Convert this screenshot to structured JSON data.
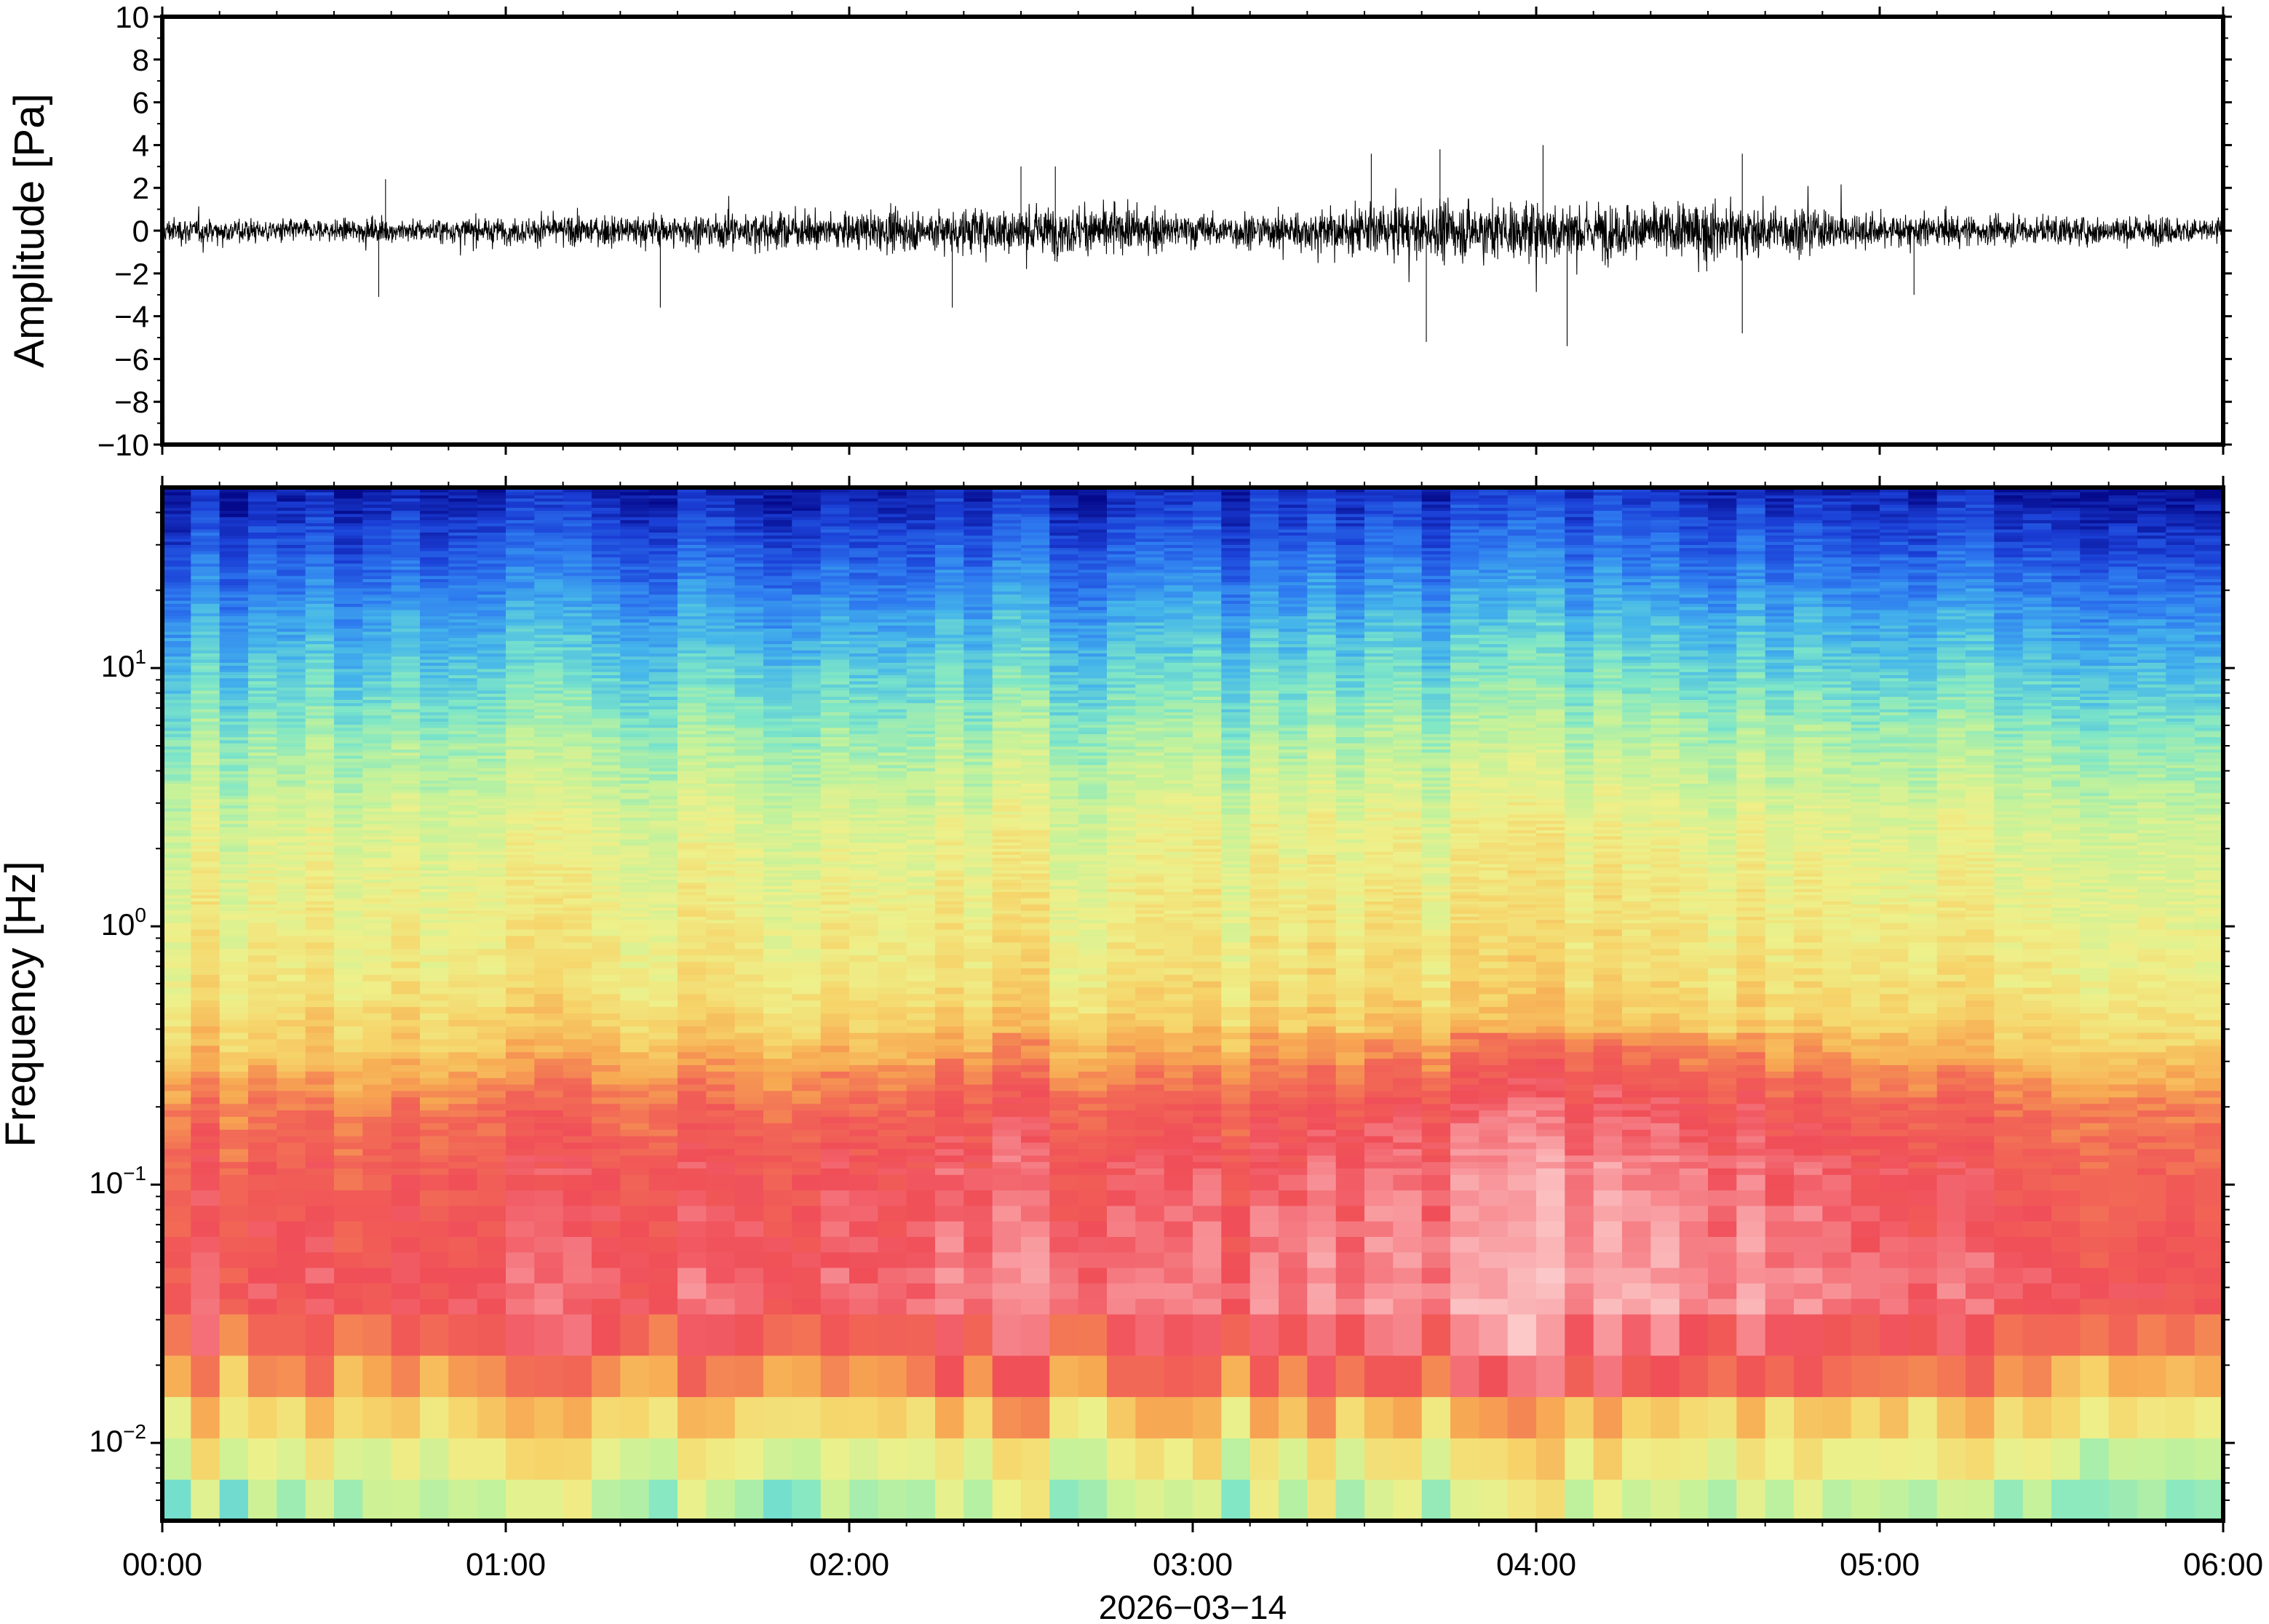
{
  "chart_data": [
    {
      "type": "line",
      "ylabel": "Amplitude [Pa]",
      "ylim": [
        -10,
        10
      ],
      "yticks": [
        10,
        8,
        6,
        4,
        2,
        0,
        -2,
        -4,
        -6,
        -8,
        -10
      ],
      "ytick_labels": [
        "10",
        "8",
        "6",
        "4",
        "2",
        "0",
        "−2",
        "−4",
        "−6",
        "−8",
        "−10"
      ],
      "xlim": [
        "00:00",
        "06:00"
      ],
      "series": [
        {
          "color": "#000000",
          "envelope_hours": [
            0,
            0.25,
            0.5,
            0.75,
            1,
            1.25,
            1.5,
            1.75,
            2,
            2.25,
            2.5,
            2.75,
            3,
            3.25,
            3.5,
            3.75,
            4,
            4.25,
            4.5,
            4.75,
            5,
            5.25,
            5.5,
            5.75,
            6
          ],
          "envelope_amplitude": [
            1.2,
            1.1,
            1.0,
            1.1,
            1.2,
            1.4,
            1.5,
            1.7,
            1.6,
            2.0,
            2.3,
            2.1,
            1.6,
            1.7,
            2.2,
            2.6,
            2.8,
            2.5,
            2.6,
            2.1,
            1.6,
            1.4,
            1.3,
            1.3,
            1.2
          ],
          "peaks": [
            {
              "t": 0.63,
              "y": -3.1
            },
            {
              "t": 0.65,
              "y": 2.4
            },
            {
              "t": 1.45,
              "y": -3.6
            },
            {
              "t": 2.3,
              "y": -3.6
            },
            {
              "t": 2.5,
              "y": 3.0
            },
            {
              "t": 2.6,
              "y": 3.0
            },
            {
              "t": 3.52,
              "y": 3.6
            },
            {
              "t": 3.68,
              "y": -5.2
            },
            {
              "t": 3.72,
              "y": 3.8
            },
            {
              "t": 4.02,
              "y": 4.0
            },
            {
              "t": 4.09,
              "y": -5.4
            },
            {
              "t": 4.6,
              "y": -4.8
            },
            {
              "t": 4.6,
              "y": 3.6
            },
            {
              "t": 5.1,
              "y": -3.0
            }
          ]
        }
      ]
    },
    {
      "type": "heatmap",
      "ylabel": "Frequency [Hz]",
      "xlabel": "2026−03−14",
      "yscale": "log",
      "ylim": [
        0.005,
        50
      ],
      "yticks": [
        {
          "value": 10,
          "base": "10",
          "exp": "1"
        },
        {
          "value": 1,
          "base": "10",
          "exp": "0"
        },
        {
          "value": 0.1,
          "base": "10",
          "exp": "−1"
        },
        {
          "value": 0.01,
          "base": "10",
          "exp": "−2"
        }
      ],
      "xticks": [
        "00:00",
        "01:00",
        "02:00",
        "03:00",
        "04:00",
        "05:00",
        "06:00"
      ],
      "xlim": [
        0,
        6
      ],
      "colormap": [
        "#050a8c",
        "#1b3fd6",
        "#2e7bf0",
        "#45b6ea",
        "#7de6c8",
        "#c4f29a",
        "#eef08a",
        "#f6d46a",
        "#f7a852",
        "#f26a56",
        "#f04e58",
        "#f78c92",
        "#fcc8c8"
      ],
      "profile": {
        "log10_freq": [
          -2.3,
          -2.0,
          -1.7,
          -1.45,
          -1.2,
          -0.95,
          -0.7,
          -0.45,
          -0.2,
          0.1,
          0.4,
          0.7,
          0.95,
          1.2,
          1.45,
          1.7
        ],
        "level": [
          0.38,
          0.52,
          0.72,
          0.85,
          0.82,
          0.8,
          0.74,
          0.6,
          0.53,
          0.5,
          0.46,
          0.38,
          0.3,
          0.22,
          0.12,
          0.03
        ]
      },
      "intensity_by_hour": {
        "hours": [
          0,
          0.5,
          1,
          1.5,
          2,
          2.5,
          3,
          3.5,
          4,
          4.5,
          5,
          5.5,
          6
        ],
        "boost": [
          0.0,
          -0.02,
          0.0,
          0.02,
          0.03,
          0.06,
          0.03,
          0.06,
          0.12,
          0.1,
          0.04,
          0.0,
          0.0
        ]
      }
    }
  ]
}
